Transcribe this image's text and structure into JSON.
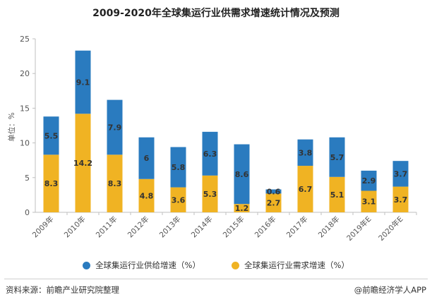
{
  "title": "2009-2020年全球集运行业供需求增速统计情况及预测",
  "ylabel": "单位：%",
  "legend": {
    "supply_label": "全球集运行业供给增速（%）",
    "demand_label": "全球集运行业需求增速（%）"
  },
  "footer": {
    "source": "资料来源：前瞻产业研究院整理",
    "brand": "@前瞻经济学人APP"
  },
  "colors": {
    "supply": "#2a7bbf",
    "demand": "#f0b323",
    "axis": "#bfbfbf",
    "tick_text": "#555555",
    "label_text": "#333333"
  },
  "chart_data": {
    "type": "bar",
    "stacked": true,
    "categories": [
      "2009年",
      "2010年",
      "2011年",
      "2012年",
      "2013年",
      "2014年",
      "2015年",
      "2016年",
      "2017年",
      "2018年",
      "2019年E",
      "2020年E"
    ],
    "series": [
      {
        "name": "全球集运行业需求增速（%）",
        "values": [
          8.3,
          14.2,
          8.3,
          4.8,
          3.6,
          5.3,
          1.2,
          2.7,
          6.7,
          5.1,
          3.1,
          3.7
        ]
      },
      {
        "name": "全球集运行业供给增速（%）",
        "values": [
          5.5,
          9.1,
          7.9,
          6,
          5.8,
          6.3,
          8.6,
          0.6,
          3.8,
          5.7,
          2.9,
          3.7
        ]
      }
    ],
    "ylim": [
      0,
      25
    ],
    "yticks": [
      0,
      5,
      10,
      15,
      20,
      25
    ],
    "grid": false,
    "legend_position": "bottom"
  }
}
